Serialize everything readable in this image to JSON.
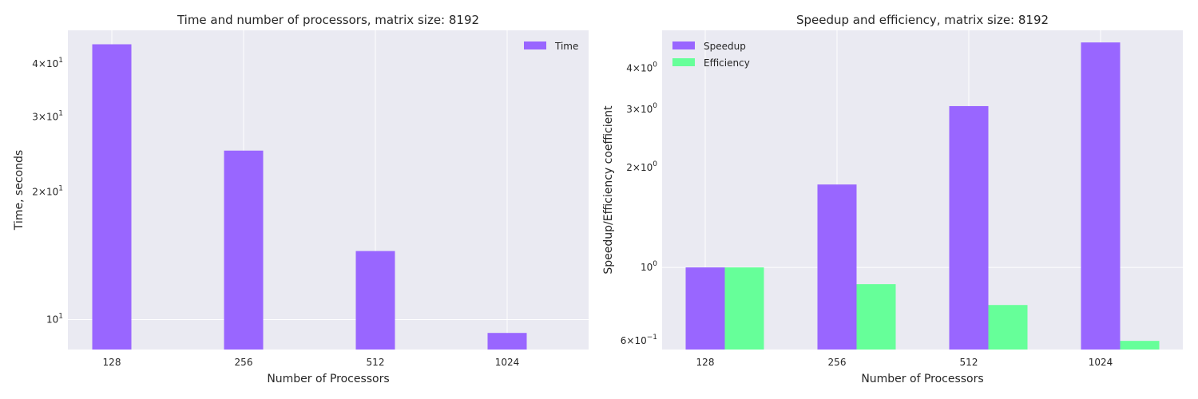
{
  "colors": {
    "background": "#ffffff",
    "plot_background": "#eaeaf2",
    "grid": "#ffffff",
    "speedup_time": "#9966ff",
    "efficiency": "#66ff99"
  },
  "chart_data": [
    {
      "type": "bar",
      "title": "Time and number of processors, matrix size: 8192",
      "xlabel": "Number of Processors",
      "ylabel": "Time, seconds",
      "yscale": "log",
      "categories": [
        "128",
        "256",
        "512",
        "1024"
      ],
      "series": [
        {
          "name": "Time",
          "values": [
            44.5,
            25.0,
            14.5,
            9.3
          ],
          "color": "#9966ff"
        }
      ],
      "ylim": [
        8.5,
        48
      ],
      "yticks": [
        {
          "value": 10,
          "base": "10",
          "exp": "1"
        },
        {
          "value": 20,
          "base": "2×10",
          "exp": "1"
        },
        {
          "value": 30,
          "base": "3×10",
          "exp": "1"
        },
        {
          "value": 40,
          "base": "4×10",
          "exp": "1"
        }
      ],
      "grid": true,
      "legend": "top-right"
    },
    {
      "type": "bar",
      "title": "Speedup and efficiency, matrix size: 8192",
      "xlabel": "Number of Processors",
      "ylabel": "Speedup/Efficiency coefficient",
      "yscale": "log",
      "categories": [
        "128",
        "256",
        "512",
        "1024"
      ],
      "series": [
        {
          "name": "Speedup",
          "values": [
            1.0,
            1.78,
            3.07,
            4.78
          ],
          "color": "#9966ff"
        },
        {
          "name": "Efficiency",
          "values": [
            1.0,
            0.89,
            0.77,
            0.6
          ],
          "color": "#66ff99"
        }
      ],
      "ylim": [
        0.565,
        5.2
      ],
      "yticks": [
        {
          "value": 0.6,
          "base": "6×10",
          "exp": "−1"
        },
        {
          "value": 1,
          "base": "10",
          "exp": "0"
        },
        {
          "value": 2,
          "base": "2×10",
          "exp": "0"
        },
        {
          "value": 3,
          "base": "3×10",
          "exp": "0"
        },
        {
          "value": 4,
          "base": "4×10",
          "exp": "0"
        }
      ],
      "grid": true,
      "legend": "top-left"
    }
  ]
}
